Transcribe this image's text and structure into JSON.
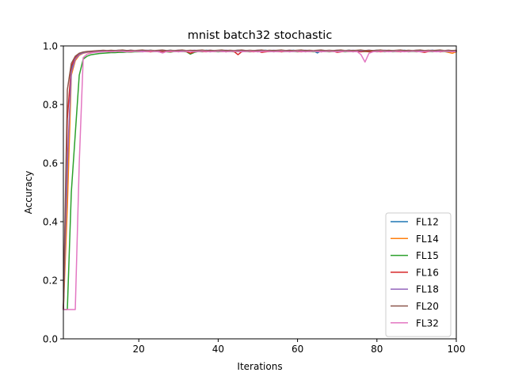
{
  "chart_data": {
    "type": "line",
    "title": "mnist batch32 stochastic",
    "xlabel": "Iterations",
    "ylabel": "Accuracy",
    "xlim": [
      1,
      100
    ],
    "ylim": [
      0.0,
      1.0
    ],
    "xticks": [
      20,
      40,
      60,
      80,
      100
    ],
    "yticks": [
      0.0,
      0.2,
      0.4,
      0.6,
      0.8,
      1.0
    ],
    "ytick_labels": [
      "0.0",
      "0.2",
      "0.4",
      "0.6",
      "0.8",
      "1.0"
    ],
    "grid": false,
    "legend_position": "lower-right",
    "x": [
      1,
      2,
      3,
      4,
      5,
      6,
      7,
      8,
      9,
      10,
      11,
      12,
      13,
      14,
      15,
      16,
      17,
      18,
      19,
      20,
      21,
      22,
      23,
      24,
      25,
      26,
      27,
      28,
      29,
      30,
      31,
      32,
      33,
      34,
      35,
      36,
      37,
      38,
      39,
      40,
      41,
      42,
      43,
      44,
      45,
      46,
      47,
      48,
      49,
      50,
      51,
      52,
      53,
      54,
      55,
      56,
      57,
      58,
      59,
      60,
      61,
      62,
      63,
      64,
      65,
      66,
      67,
      68,
      69,
      70,
      71,
      72,
      73,
      74,
      75,
      76,
      77,
      78,
      79,
      80,
      81,
      82,
      83,
      84,
      85,
      86,
      87,
      88,
      89,
      90,
      91,
      92,
      93,
      94,
      95,
      96,
      97,
      98,
      99,
      100
    ],
    "series": [
      {
        "name": "FL12",
        "color": "#1f77b4",
        "values": [
          0.1,
          0.55,
          0.92,
          0.955,
          0.97,
          0.976,
          0.979,
          0.981,
          0.982,
          0.983,
          0.983,
          0.982,
          0.983,
          0.984,
          0.983,
          0.984,
          0.983,
          0.985,
          0.982,
          0.984,
          0.983,
          0.984,
          0.985,
          0.983,
          0.984,
          0.982,
          0.984,
          0.985,
          0.983,
          0.984,
          0.983,
          0.984,
          0.982,
          0.983,
          0.984,
          0.983,
          0.985,
          0.984,
          0.983,
          0.984,
          0.982,
          0.984,
          0.983,
          0.984,
          0.985,
          0.983,
          0.984,
          0.982,
          0.984,
          0.983,
          0.984,
          0.985,
          0.983,
          0.984,
          0.982,
          0.984,
          0.983,
          0.984,
          0.985,
          0.983,
          0.984,
          0.982,
          0.984,
          0.983,
          0.976,
          0.984,
          0.983,
          0.984,
          0.982,
          0.984,
          0.983,
          0.984,
          0.985,
          0.983,
          0.984,
          0.982,
          0.984,
          0.983,
          0.984,
          0.985,
          0.983,
          0.984,
          0.982,
          0.984,
          0.983,
          0.984,
          0.985,
          0.983,
          0.984,
          0.982,
          0.984,
          0.983,
          0.984,
          0.985,
          0.983,
          0.984,
          0.982,
          0.984,
          0.983,
          0.984
        ]
      },
      {
        "name": "FL14",
        "color": "#ff7f0e",
        "values": [
          0.1,
          0.45,
          0.9,
          0.95,
          0.968,
          0.975,
          0.978,
          0.98,
          0.981,
          0.982,
          0.982,
          0.981,
          0.982,
          0.983,
          0.982,
          0.983,
          0.982,
          0.984,
          0.981,
          0.983,
          0.982,
          0.983,
          0.984,
          0.982,
          0.983,
          0.981,
          0.983,
          0.984,
          0.982,
          0.983,
          0.982,
          0.983,
          0.981,
          0.982,
          0.983,
          0.982,
          0.984,
          0.983,
          0.982,
          0.983,
          0.981,
          0.983,
          0.982,
          0.983,
          0.984,
          0.982,
          0.983,
          0.981,
          0.983,
          0.982,
          0.983,
          0.984,
          0.982,
          0.983,
          0.981,
          0.983,
          0.982,
          0.983,
          0.984,
          0.982,
          0.983,
          0.981,
          0.983,
          0.982,
          0.983,
          0.984,
          0.982,
          0.983,
          0.981,
          0.983,
          0.982,
          0.983,
          0.984,
          0.982,
          0.983,
          0.981,
          0.983,
          0.982,
          0.983,
          0.984,
          0.982,
          0.983,
          0.981,
          0.983,
          0.982,
          0.983,
          0.984,
          0.982,
          0.983,
          0.981,
          0.983,
          0.982,
          0.983,
          0.984,
          0.982,
          0.983,
          0.981,
          0.978,
          0.975,
          0.98
        ]
      },
      {
        "name": "FL15",
        "color": "#2ca02c",
        "values": [
          0.1,
          0.1,
          0.5,
          0.7,
          0.9,
          0.955,
          0.965,
          0.97,
          0.972,
          0.974,
          0.975,
          0.976,
          0.977,
          0.977,
          0.978,
          0.978,
          0.979,
          0.979,
          0.98,
          0.98,
          0.98,
          0.981,
          0.98,
          0.981,
          0.98,
          0.981,
          0.98,
          0.979,
          0.981,
          0.98,
          0.981,
          0.98,
          0.972,
          0.978,
          0.981,
          0.98,
          0.981,
          0.98,
          0.981,
          0.98,
          0.981,
          0.98,
          0.981,
          0.98,
          0.981,
          0.98,
          0.981,
          0.98,
          0.981,
          0.98,
          0.981,
          0.98,
          0.981,
          0.98,
          0.981,
          0.98,
          0.981,
          0.98,
          0.981,
          0.98,
          0.981,
          0.98,
          0.981,
          0.98,
          0.981,
          0.98,
          0.981,
          0.98,
          0.981,
          0.98,
          0.981,
          0.98,
          0.981,
          0.98,
          0.981,
          0.98,
          0.981,
          0.98,
          0.981,
          0.98,
          0.981,
          0.98,
          0.981,
          0.98,
          0.981,
          0.98,
          0.981,
          0.98,
          0.981,
          0.98,
          0.981,
          0.98,
          0.981,
          0.98,
          0.981,
          0.98,
          0.981,
          0.98,
          0.981,
          0.98
        ]
      },
      {
        "name": "FL16",
        "color": "#d62728",
        "values": [
          0.1,
          0.75,
          0.93,
          0.96,
          0.972,
          0.977,
          0.979,
          0.98,
          0.981,
          0.982,
          0.982,
          0.981,
          0.98,
          0.982,
          0.981,
          0.982,
          0.981,
          0.98,
          0.982,
          0.981,
          0.982,
          0.981,
          0.98,
          0.982,
          0.981,
          0.982,
          0.981,
          0.98,
          0.982,
          0.981,
          0.982,
          0.981,
          0.975,
          0.98,
          0.982,
          0.981,
          0.98,
          0.982,
          0.981,
          0.982,
          0.981,
          0.98,
          0.982,
          0.981,
          0.97,
          0.981,
          0.982,
          0.981,
          0.98,
          0.982,
          0.978,
          0.98,
          0.981,
          0.982,
          0.981,
          0.98,
          0.982,
          0.981,
          0.982,
          0.981,
          0.98,
          0.982,
          0.981,
          0.982,
          0.981,
          0.98,
          0.982,
          0.981,
          0.982,
          0.978,
          0.98,
          0.982,
          0.981,
          0.982,
          0.981,
          0.98,
          0.982,
          0.981,
          0.982,
          0.981,
          0.98,
          0.982,
          0.981,
          0.982,
          0.981,
          0.98,
          0.982,
          0.981,
          0.982,
          0.981,
          0.98,
          0.978,
          0.981,
          0.982,
          0.981,
          0.98,
          0.982,
          0.981,
          0.982,
          0.981
        ]
      },
      {
        "name": "FL18",
        "color": "#9467bd",
        "values": [
          0.1,
          0.6,
          0.91,
          0.955,
          0.97,
          0.976,
          0.979,
          0.981,
          0.982,
          0.983,
          0.983,
          0.984,
          0.983,
          0.984,
          0.985,
          0.983,
          0.984,
          0.985,
          0.984,
          0.983,
          0.984,
          0.985,
          0.984,
          0.983,
          0.984,
          0.985,
          0.984,
          0.983,
          0.984,
          0.985,
          0.984,
          0.983,
          0.984,
          0.985,
          0.984,
          0.983,
          0.984,
          0.985,
          0.984,
          0.983,
          0.984,
          0.985,
          0.984,
          0.983,
          0.984,
          0.985,
          0.984,
          0.983,
          0.984,
          0.985,
          0.984,
          0.983,
          0.984,
          0.985,
          0.984,
          0.983,
          0.984,
          0.985,
          0.984,
          0.983,
          0.984,
          0.985,
          0.984,
          0.983,
          0.984,
          0.985,
          0.984,
          0.983,
          0.984,
          0.985,
          0.984,
          0.983,
          0.984,
          0.985,
          0.984,
          0.983,
          0.984,
          0.985,
          0.984,
          0.983,
          0.984,
          0.985,
          0.984,
          0.983,
          0.984,
          0.985,
          0.984,
          0.983,
          0.984,
          0.985,
          0.984,
          0.983,
          0.984,
          0.985,
          0.984,
          0.983,
          0.984,
          0.985,
          0.984,
          0.983
        ]
      },
      {
        "name": "FL20",
        "color": "#8c564b",
        "values": [
          0.1,
          0.85,
          0.94,
          0.965,
          0.975,
          0.979,
          0.981,
          0.982,
          0.983,
          0.984,
          0.985,
          0.984,
          0.985,
          0.984,
          0.985,
          0.986,
          0.984,
          0.985,
          0.984,
          0.985,
          0.986,
          0.984,
          0.985,
          0.984,
          0.985,
          0.986,
          0.984,
          0.985,
          0.984,
          0.985,
          0.986,
          0.984,
          0.985,
          0.984,
          0.985,
          0.986,
          0.984,
          0.985,
          0.984,
          0.985,
          0.986,
          0.984,
          0.985,
          0.984,
          0.985,
          0.986,
          0.984,
          0.985,
          0.984,
          0.985,
          0.986,
          0.984,
          0.985,
          0.984,
          0.985,
          0.986,
          0.984,
          0.985,
          0.984,
          0.985,
          0.986,
          0.984,
          0.985,
          0.984,
          0.985,
          0.986,
          0.984,
          0.985,
          0.984,
          0.985,
          0.986,
          0.984,
          0.985,
          0.984,
          0.985,
          0.986,
          0.984,
          0.985,
          0.984,
          0.985,
          0.986,
          0.984,
          0.985,
          0.984,
          0.985,
          0.986,
          0.984,
          0.985,
          0.984,
          0.985,
          0.986,
          0.984,
          0.985,
          0.984,
          0.985,
          0.986,
          0.984,
          0.985,
          0.984,
          0.985
        ]
      },
      {
        "name": "FL32",
        "color": "#e377c2",
        "values": [
          0.1,
          0.1,
          0.1,
          0.1,
          0.6,
          0.96,
          0.972,
          0.976,
          0.978,
          0.979,
          0.98,
          0.981,
          0.98,
          0.981,
          0.982,
          0.981,
          0.98,
          0.981,
          0.982,
          0.981,
          0.98,
          0.981,
          0.982,
          0.981,
          0.98,
          0.976,
          0.981,
          0.982,
          0.981,
          0.98,
          0.981,
          0.982,
          0.981,
          0.98,
          0.981,
          0.982,
          0.981,
          0.98,
          0.981,
          0.982,
          0.981,
          0.98,
          0.981,
          0.982,
          0.981,
          0.98,
          0.981,
          0.982,
          0.981,
          0.98,
          0.981,
          0.982,
          0.981,
          0.98,
          0.981,
          0.982,
          0.981,
          0.98,
          0.981,
          0.982,
          0.981,
          0.98,
          0.981,
          0.982,
          0.981,
          0.98,
          0.981,
          0.982,
          0.981,
          0.98,
          0.981,
          0.982,
          0.981,
          0.98,
          0.981,
          0.97,
          0.945,
          0.975,
          0.98,
          0.981,
          0.982,
          0.981,
          0.98,
          0.981,
          0.982,
          0.981,
          0.98,
          0.981,
          0.982,
          0.981,
          0.98,
          0.981,
          0.982,
          0.981,
          0.98,
          0.981,
          0.982,
          0.981,
          0.98,
          0.981
        ]
      }
    ]
  }
}
